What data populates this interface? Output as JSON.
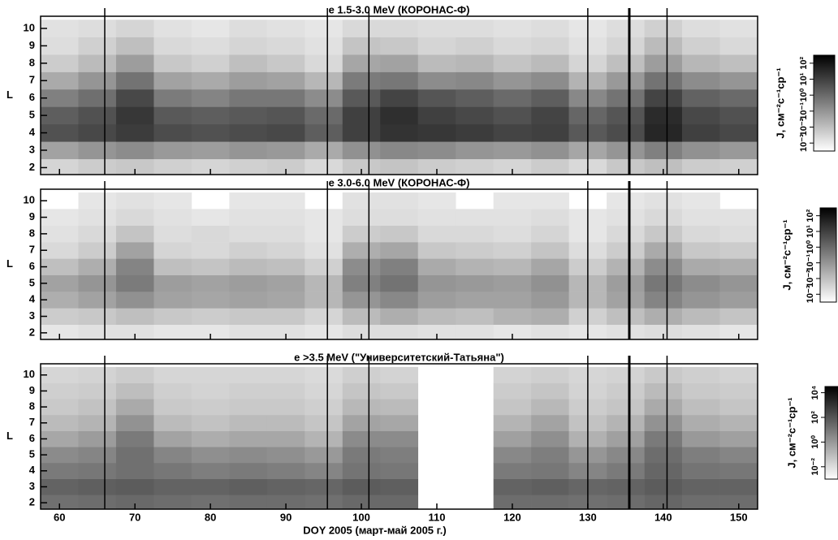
{
  "chart_data": [
    {
      "type": "heatmap",
      "title": "e 1.5-3.0 MeV  (КОРОНАС-Ф)",
      "ylabel": "L",
      "colorbar_label": "J, см⁻²c⁻¹cp⁻¹",
      "xlim": [
        57.5,
        152.5
      ],
      "ylim": [
        1.6,
        10.7
      ],
      "yticks": [
        2,
        3,
        4,
        5,
        6,
        7,
        8,
        9,
        10
      ],
      "x_edges": [
        57.5,
        62.5,
        67.5,
        72.5,
        77.5,
        82.5,
        87.5,
        92.5,
        97.5,
        102.5,
        107.5,
        112.5,
        117.5,
        122.5,
        127.5,
        132.5,
        137.5,
        142.5,
        147.5,
        152.5
      ],
      "y_edges": [
        1.5,
        2.5,
        3.5,
        4.5,
        5.5,
        6.5,
        7.5,
        8.5,
        9.5,
        10.5
      ],
      "vlines": [
        66,
        95.5,
        101,
        130,
        135.5,
        140.5
      ],
      "colormap": [
        "#ffffff",
        "#000000"
      ],
      "clim": [
        -3.5,
        2.5
      ],
      "cticks": [
        {
          "value": -3,
          "label": "10⁻³"
        },
        {
          "value": -2,
          "label": "10⁻²"
        },
        {
          "value": -1,
          "label": "10⁻¹"
        },
        {
          "value": 0,
          "label": "10⁰"
        },
        {
          "value": 1,
          "label": "10¹"
        },
        {
          "value": 2,
          "label": "10²"
        }
      ],
      "values": [
        [
          -2.5,
          -2.3,
          -2.2,
          -2.4,
          -2.5,
          -2.4,
          -2.3,
          -2.6,
          -2.2,
          -2.1,
          -2.3,
          -2.4,
          -2.5,
          -2.3,
          -2.6,
          -2.2,
          -2.0,
          -2.3,
          -2.4
        ],
        [
          -1.3,
          -1.0,
          -0.8,
          -1.1,
          -1.2,
          -1.0,
          -1.1,
          -1.5,
          -0.9,
          -0.7,
          -0.8,
          -1.0,
          -1.1,
          -0.9,
          -1.4,
          -1.0,
          -0.5,
          -0.9,
          -1.1
        ],
        [
          0.6,
          0.8,
          1.1,
          0.7,
          0.6,
          0.7,
          0.8,
          0.3,
          1.0,
          1.3,
          1.2,
          1.1,
          0.9,
          1.0,
          0.4,
          0.7,
          1.6,
          1.0,
          0.8
        ],
        [
          0.3,
          0.6,
          1.2,
          0.4,
          0.3,
          0.4,
          0.5,
          0.0,
          1.0,
          1.4,
          1.0,
          0.8,
          0.6,
          0.9,
          0.1,
          0.5,
          1.5,
          0.8,
          0.6
        ],
        [
          -0.5,
          -0.1,
          0.8,
          -0.4,
          -0.6,
          -0.3,
          -0.3,
          -0.8,
          0.4,
          0.9,
          0.5,
          0.3,
          0.0,
          0.3,
          -0.7,
          -0.2,
          0.9,
          0.2,
          0.0
        ],
        [
          -1.5,
          -1.0,
          -0.2,
          -1.3,
          -1.5,
          -1.2,
          -1.3,
          -1.8,
          -0.4,
          -0.3,
          -0.8,
          -0.7,
          -1.0,
          -0.8,
          -1.7,
          -1.1,
          -0.2,
          -0.8,
          -1.0
        ],
        [
          -2.3,
          -1.9,
          -1.2,
          -2.2,
          -2.4,
          -2.0,
          -2.2,
          -2.6,
          -1.4,
          -1.3,
          -1.9,
          -1.8,
          -2.1,
          -1.9,
          -2.5,
          -2.0,
          -1.2,
          -1.8,
          -2.0
        ],
        [
          -2.7,
          -2.4,
          -2.0,
          -2.6,
          -2.7,
          -2.5,
          -2.6,
          -2.8,
          -2.1,
          -2.2,
          -2.5,
          -2.4,
          -2.6,
          -2.5,
          -2.8,
          -2.5,
          -1.9,
          -2.4,
          -2.6
        ],
        [
          -2.8,
          -2.7,
          -2.5,
          -2.8,
          -2.9,
          -2.7,
          -2.8,
          -2.9,
          -2.6,
          -2.6,
          -2.7,
          -2.7,
          -2.8,
          -2.7,
          -2.9,
          -2.7,
          -2.4,
          -2.7,
          -2.8
        ]
      ]
    },
    {
      "type": "heatmap",
      "title": "e 3.0-6.0 MeV  (КОРОНАС-Ф)",
      "ylabel": "L",
      "colorbar_label": "J, см⁻²c⁻¹cp⁻¹",
      "xlim": [
        57.5,
        152.5
      ],
      "ylim": [
        1.6,
        10.7
      ],
      "yticks": [
        2,
        3,
        4,
        5,
        6,
        7,
        8,
        9,
        10
      ],
      "x_edges": [
        57.5,
        62.5,
        67.5,
        72.5,
        77.5,
        82.5,
        87.5,
        92.5,
        97.5,
        102.5,
        107.5,
        112.5,
        117.5,
        122.5,
        127.5,
        132.5,
        137.5,
        142.5,
        147.5,
        152.5
      ],
      "y_edges": [
        1.5,
        2.5,
        3.5,
        4.5,
        5.5,
        6.5,
        7.5,
        8.5,
        9.5,
        10.5
      ],
      "vlines": [
        66,
        95.5,
        101,
        130,
        135.5,
        140.5
      ],
      "colormap": [
        "#ffffff",
        "#000000"
      ],
      "clim": [
        -3.5,
        2.5
      ],
      "cticks": [
        {
          "value": -3,
          "label": "10⁻³"
        },
        {
          "value": -2,
          "label": "10⁻²"
        },
        {
          "value": -1,
          "label": "10⁻¹"
        },
        {
          "value": 0,
          "label": "10⁰"
        },
        {
          "value": 1,
          "label": "10¹"
        },
        {
          "value": 2,
          "label": "10²"
        }
      ],
      "values": [
        [
          -2.9,
          -2.8,
          -2.8,
          -2.9,
          -2.9,
          -2.8,
          -2.8,
          -2.9,
          -2.7,
          -2.7,
          -2.8,
          -2.8,
          -2.9,
          -2.8,
          -2.9,
          -2.8,
          -2.7,
          -2.8,
          -2.9
        ],
        [
          -2.3,
          -2.2,
          -2.0,
          -2.2,
          -2.3,
          -2.2,
          -2.2,
          -2.5,
          -1.9,
          -1.6,
          -1.9,
          -2.0,
          -1.7,
          -1.6,
          -2.4,
          -2.0,
          -1.6,
          -1.9,
          -2.1
        ],
        [
          -1.6,
          -1.3,
          -0.9,
          -1.3,
          -1.4,
          -1.3,
          -1.4,
          -1.8,
          -1.0,
          -0.7,
          -1.2,
          -1.3,
          -1.3,
          -1.1,
          -1.8,
          -1.3,
          -0.6,
          -1.0,
          -1.2
        ],
        [
          -1.3,
          -1.0,
          -0.4,
          -1.2,
          -1.3,
          -1.2,
          -1.3,
          -1.8,
          -0.5,
          -0.2,
          -1.0,
          -1.1,
          -1.2,
          -0.9,
          -1.8,
          -1.2,
          -0.3,
          -0.8,
          -1.0
        ],
        [
          -2.0,
          -1.6,
          -0.6,
          -2.0,
          -2.1,
          -1.9,
          -2.0,
          -2.4,
          -0.8,
          -0.5,
          -1.5,
          -1.7,
          -1.8,
          -1.4,
          -2.3,
          -1.7,
          -0.8,
          -1.5,
          -1.6
        ],
        [
          -2.6,
          -2.3,
          -1.3,
          -2.5,
          -2.6,
          -2.4,
          -2.5,
          -2.8,
          -1.6,
          -1.4,
          -2.2,
          -2.3,
          -2.4,
          -2.1,
          -2.7,
          -2.3,
          -1.5,
          -2.2,
          -2.3
        ],
        [
          -2.8,
          -2.6,
          -2.1,
          -2.7,
          -2.6,
          -2.7,
          -2.7,
          -2.9,
          -2.3,
          -2.2,
          -2.6,
          -2.6,
          -2.7,
          -2.5,
          -2.9,
          -2.6,
          -2.2,
          -2.6,
          -2.7
        ],
        [
          -2.9,
          -2.8,
          -2.6,
          -2.8,
          -2.9,
          -2.8,
          -2.8,
          -2.9,
          -2.7,
          -2.7,
          -2.8,
          -2.8,
          -2.8,
          -2.7,
          -2.9,
          -2.8,
          -2.6,
          -2.8,
          -2.8
        ],
        [
          null,
          -2.9,
          -2.8,
          -2.9,
          null,
          -2.9,
          -2.9,
          null,
          -2.8,
          -2.8,
          -2.9,
          null,
          -2.9,
          -2.9,
          null,
          -2.9,
          -2.8,
          -2.9,
          null
        ]
      ]
    },
    {
      "type": "heatmap",
      "title": "e >3.5 MeV  (\"Университетский-Татьяна\")",
      "ylabel": "L",
      "xlabel": "DOY 2005   (март-май 2005 г.)",
      "colorbar_label": "J, см⁻²c⁻¹cp⁻¹",
      "xlim": [
        57.5,
        152.5
      ],
      "ylim": [
        1.6,
        10.7
      ],
      "yticks": [
        2,
        3,
        4,
        5,
        6,
        7,
        8,
        9,
        10
      ],
      "xticks": [
        60,
        70,
        80,
        90,
        100,
        110,
        120,
        130,
        140,
        150
      ],
      "x_edges": [
        57.5,
        62.5,
        67.5,
        72.5,
        77.5,
        82.5,
        87.5,
        92.5,
        97.5,
        102.5,
        107.5,
        112.5,
        117.5,
        122.5,
        127.5,
        132.5,
        137.5,
        142.5,
        147.5,
        152.5
      ],
      "y_edges": [
        1.5,
        2.5,
        3.5,
        4.5,
        5.5,
        6.5,
        7.5,
        8.5,
        9.5,
        10.5
      ],
      "vlines": [
        66,
        95.5,
        101,
        130,
        135.5,
        140.5
      ],
      "colormap": [
        "#ffffff",
        "#000000"
      ],
      "clim": [
        -3,
        4.5
      ],
      "cticks": [
        {
          "value": -2,
          "label": "10⁻²"
        },
        {
          "value": 0,
          "label": "10⁰"
        },
        {
          "value": 2,
          "label": "10²"
        },
        {
          "value": 4,
          "label": "10⁴"
        }
      ],
      "values": [
        [
          1.2,
          1.3,
          1.4,
          1.3,
          1.2,
          1.3,
          1.3,
          1.2,
          1.4,
          1.4,
          null,
          null,
          1.3,
          1.3,
          1.2,
          1.3,
          1.5,
          1.3,
          1.3
        ],
        [
          1.6,
          1.7,
          1.8,
          1.6,
          1.6,
          1.7,
          1.6,
          1.5,
          1.8,
          1.7,
          null,
          null,
          1.6,
          1.7,
          1.5,
          1.6,
          1.8,
          1.6,
          1.6
        ],
        [
          0.9,
          1.0,
          1.2,
          1.0,
          0.8,
          0.9,
          0.8,
          0.6,
          1.1,
          1.0,
          null,
          null,
          0.9,
          1.0,
          0.6,
          0.9,
          1.5,
          1.1,
          1.0
        ],
        [
          0.4,
          0.6,
          1.2,
          0.6,
          0.3,
          0.4,
          0.3,
          0.0,
          0.9,
          0.8,
          null,
          null,
          0.5,
          0.8,
          0.1,
          0.5,
          1.3,
          0.8,
          0.6
        ],
        [
          -0.4,
          -0.1,
          0.9,
          -0.3,
          -0.6,
          -0.4,
          -0.4,
          -0.8,
          0.4,
          0.4,
          null,
          null,
          -0.2,
          0.3,
          -0.7,
          -0.2,
          0.9,
          0.0,
          -0.2
        ],
        [
          -1.0,
          -0.8,
          0.2,
          -1.0,
          -1.2,
          -1.0,
          -1.0,
          -1.3,
          -0.3,
          -0.4,
          null,
          null,
          -0.8,
          -0.3,
          -1.2,
          -0.8,
          0.2,
          -0.6,
          -0.8
        ],
        [
          -1.4,
          -1.2,
          -0.5,
          -1.4,
          -1.5,
          -1.4,
          -1.4,
          -1.6,
          -0.9,
          -1.0,
          null,
          null,
          -1.3,
          -0.9,
          -1.5,
          -1.3,
          -0.5,
          -1.1,
          -1.3
        ],
        [
          -1.6,
          -1.5,
          -1.1,
          -1.6,
          -1.7,
          -1.6,
          -1.6,
          -1.8,
          -1.3,
          -1.4,
          null,
          null,
          -1.5,
          -1.3,
          -1.7,
          -1.5,
          -1.0,
          -1.4,
          -1.5
        ],
        [
          -1.8,
          -1.7,
          -1.5,
          -1.8,
          -1.8,
          -1.8,
          -1.8,
          -1.9,
          -1.6,
          -1.7,
          null,
          null,
          -1.7,
          -1.6,
          -1.8,
          -1.7,
          -1.4,
          -1.6,
          -1.7
        ]
      ]
    }
  ]
}
